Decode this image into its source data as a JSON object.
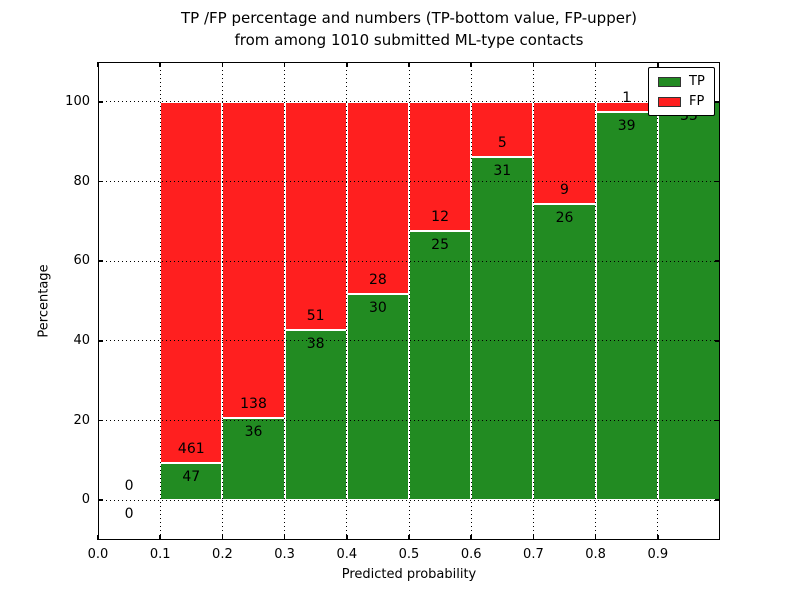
{
  "title": {
    "line1": "TP /FP percentage and numbers (TP-bottom value, FP-upper)",
    "line2": "from among 1010 submitted ML-type contacts"
  },
  "chart_data": {
    "type": "bar",
    "stacked": true,
    "normalized": "percent",
    "title": "TP /FP percentage and numbers (TP-bottom value, FP-upper)\nfrom among 1010 submitted ML-type contacts",
    "total_contacts": 1010,
    "xlabel": "Predicted probability",
    "ylabel": "Percentage",
    "xlim": [
      0.0,
      1.0
    ],
    "ylim": [
      -10,
      110
    ],
    "grid": true,
    "xticks": [
      "0.0",
      "0.1",
      "0.2",
      "0.3",
      "0.4",
      "0.5",
      "0.6",
      "0.7",
      "0.8",
      "0.9"
    ],
    "yticks": [
      "0",
      "20",
      "40",
      "60",
      "80",
      "100"
    ],
    "legend": {
      "position": "upper right",
      "entries": [
        {
          "label": "TP",
          "color": "#228b22"
        },
        {
          "label": "FP",
          "color": "#ff1f1f"
        }
      ]
    },
    "series_note": "each bin stacked to 100%; label = raw count (TP bottom, FP upper)",
    "bins": [
      {
        "range": [
          0.0,
          0.1
        ],
        "tp": 0,
        "fp": 0
      },
      {
        "range": [
          0.1,
          0.2
        ],
        "tp": 47,
        "fp": 461
      },
      {
        "range": [
          0.2,
          0.3
        ],
        "tp": 36,
        "fp": 138
      },
      {
        "range": [
          0.3,
          0.4
        ],
        "tp": 38,
        "fp": 51
      },
      {
        "range": [
          0.4,
          0.5
        ],
        "tp": 30,
        "fp": 28
      },
      {
        "range": [
          0.5,
          0.6
        ],
        "tp": 25,
        "fp": 12
      },
      {
        "range": [
          0.6,
          0.7
        ],
        "tp": 31,
        "fp": 5
      },
      {
        "range": [
          0.7,
          0.8
        ],
        "tp": 26,
        "fp": 9
      },
      {
        "range": [
          0.8,
          0.9
        ],
        "tp": 39,
        "fp": 1
      },
      {
        "range": [
          0.9,
          1.0
        ],
        "tp": 33,
        "fp": 0
      }
    ],
    "colors": {
      "tp": "#228b22",
      "fp": "#ff1f1f",
      "grid": "#000000",
      "background": "#ffffff"
    }
  }
}
